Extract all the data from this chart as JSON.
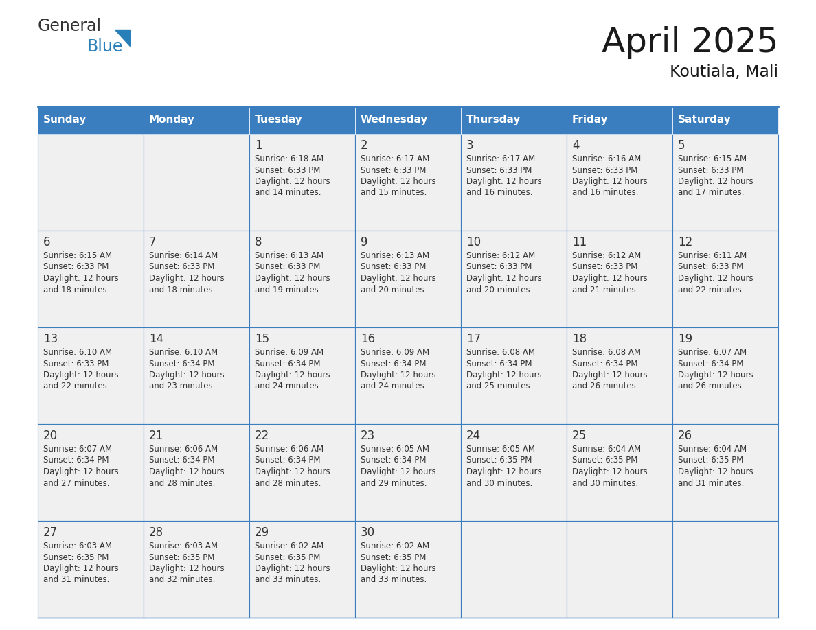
{
  "title": "April 2025",
  "subtitle": "Koutiala, Mali",
  "header_color": "#3a7ebf",
  "header_text_color": "#ffffff",
  "cell_bg_color": "#f0f0f0",
  "border_color": "#3a7ebf",
  "text_color": "#333333",
  "days_of_week": [
    "Sunday",
    "Monday",
    "Tuesday",
    "Wednesday",
    "Thursday",
    "Friday",
    "Saturday"
  ],
  "weeks": [
    [
      {
        "day": "",
        "info": ""
      },
      {
        "day": "",
        "info": ""
      },
      {
        "day": "1",
        "info": "Sunrise: 6:18 AM\nSunset: 6:33 PM\nDaylight: 12 hours\nand 14 minutes."
      },
      {
        "day": "2",
        "info": "Sunrise: 6:17 AM\nSunset: 6:33 PM\nDaylight: 12 hours\nand 15 minutes."
      },
      {
        "day": "3",
        "info": "Sunrise: 6:17 AM\nSunset: 6:33 PM\nDaylight: 12 hours\nand 16 minutes."
      },
      {
        "day": "4",
        "info": "Sunrise: 6:16 AM\nSunset: 6:33 PM\nDaylight: 12 hours\nand 16 minutes."
      },
      {
        "day": "5",
        "info": "Sunrise: 6:15 AM\nSunset: 6:33 PM\nDaylight: 12 hours\nand 17 minutes."
      }
    ],
    [
      {
        "day": "6",
        "info": "Sunrise: 6:15 AM\nSunset: 6:33 PM\nDaylight: 12 hours\nand 18 minutes."
      },
      {
        "day": "7",
        "info": "Sunrise: 6:14 AM\nSunset: 6:33 PM\nDaylight: 12 hours\nand 18 minutes."
      },
      {
        "day": "8",
        "info": "Sunrise: 6:13 AM\nSunset: 6:33 PM\nDaylight: 12 hours\nand 19 minutes."
      },
      {
        "day": "9",
        "info": "Sunrise: 6:13 AM\nSunset: 6:33 PM\nDaylight: 12 hours\nand 20 minutes."
      },
      {
        "day": "10",
        "info": "Sunrise: 6:12 AM\nSunset: 6:33 PM\nDaylight: 12 hours\nand 20 minutes."
      },
      {
        "day": "11",
        "info": "Sunrise: 6:12 AM\nSunset: 6:33 PM\nDaylight: 12 hours\nand 21 minutes."
      },
      {
        "day": "12",
        "info": "Sunrise: 6:11 AM\nSunset: 6:33 PM\nDaylight: 12 hours\nand 22 minutes."
      }
    ],
    [
      {
        "day": "13",
        "info": "Sunrise: 6:10 AM\nSunset: 6:33 PM\nDaylight: 12 hours\nand 22 minutes."
      },
      {
        "day": "14",
        "info": "Sunrise: 6:10 AM\nSunset: 6:34 PM\nDaylight: 12 hours\nand 23 minutes."
      },
      {
        "day": "15",
        "info": "Sunrise: 6:09 AM\nSunset: 6:34 PM\nDaylight: 12 hours\nand 24 minutes."
      },
      {
        "day": "16",
        "info": "Sunrise: 6:09 AM\nSunset: 6:34 PM\nDaylight: 12 hours\nand 24 minutes."
      },
      {
        "day": "17",
        "info": "Sunrise: 6:08 AM\nSunset: 6:34 PM\nDaylight: 12 hours\nand 25 minutes."
      },
      {
        "day": "18",
        "info": "Sunrise: 6:08 AM\nSunset: 6:34 PM\nDaylight: 12 hours\nand 26 minutes."
      },
      {
        "day": "19",
        "info": "Sunrise: 6:07 AM\nSunset: 6:34 PM\nDaylight: 12 hours\nand 26 minutes."
      }
    ],
    [
      {
        "day": "20",
        "info": "Sunrise: 6:07 AM\nSunset: 6:34 PM\nDaylight: 12 hours\nand 27 minutes."
      },
      {
        "day": "21",
        "info": "Sunrise: 6:06 AM\nSunset: 6:34 PM\nDaylight: 12 hours\nand 28 minutes."
      },
      {
        "day": "22",
        "info": "Sunrise: 6:06 AM\nSunset: 6:34 PM\nDaylight: 12 hours\nand 28 minutes."
      },
      {
        "day": "23",
        "info": "Sunrise: 6:05 AM\nSunset: 6:34 PM\nDaylight: 12 hours\nand 29 minutes."
      },
      {
        "day": "24",
        "info": "Sunrise: 6:05 AM\nSunset: 6:35 PM\nDaylight: 12 hours\nand 30 minutes."
      },
      {
        "day": "25",
        "info": "Sunrise: 6:04 AM\nSunset: 6:35 PM\nDaylight: 12 hours\nand 30 minutes."
      },
      {
        "day": "26",
        "info": "Sunrise: 6:04 AM\nSunset: 6:35 PM\nDaylight: 12 hours\nand 31 minutes."
      }
    ],
    [
      {
        "day": "27",
        "info": "Sunrise: 6:03 AM\nSunset: 6:35 PM\nDaylight: 12 hours\nand 31 minutes."
      },
      {
        "day": "28",
        "info": "Sunrise: 6:03 AM\nSunset: 6:35 PM\nDaylight: 12 hours\nand 32 minutes."
      },
      {
        "day": "29",
        "info": "Sunrise: 6:02 AM\nSunset: 6:35 PM\nDaylight: 12 hours\nand 33 minutes."
      },
      {
        "day": "30",
        "info": "Sunrise: 6:02 AM\nSunset: 6:35 PM\nDaylight: 12 hours\nand 33 minutes."
      },
      {
        "day": "",
        "info": ""
      },
      {
        "day": "",
        "info": ""
      },
      {
        "day": "",
        "info": ""
      }
    ]
  ],
  "logo_text1": "General",
  "logo_text2": "Blue",
  "logo_color1": "#333333",
  "logo_color2": "#2980b9",
  "fig_width": 11.88,
  "fig_height": 9.18,
  "dpi": 100
}
